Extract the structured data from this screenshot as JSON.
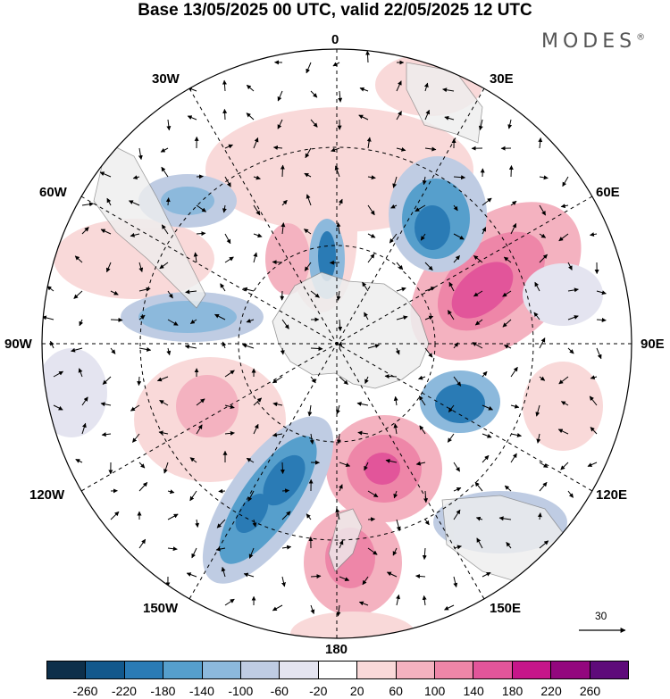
{
  "title": "Base 13/05/2025 00 UTC, valid 22/05/2025 12 UTC",
  "brand": "MODES",
  "brand_mark": "®",
  "longitude_labels": {
    "lon_0": "0",
    "lon_30e": "30E",
    "lon_60e": "60E",
    "lon_90e": "90E",
    "lon_120e": "120E",
    "lon_150e": "150E",
    "lon_180": "180",
    "lon_150w": "150W",
    "lon_120w": "120W",
    "lon_90w": "90W",
    "lon_60w": "60W",
    "lon_30w": "30W"
  },
  "vector_reference": "30",
  "colorbar": {
    "colors": [
      "#0d2f4a",
      "#12588c",
      "#2a7bb5",
      "#569fcc",
      "#8cb9dc",
      "#bfcce3",
      "#e4e4f0",
      "#ffffff",
      "#f9d9d9",
      "#f4b2c0",
      "#ee86a8",
      "#e2559a",
      "#c6168a",
      "#93077e",
      "#5e0b7a"
    ],
    "ticks": [
      "-260",
      "-220",
      "-180",
      "-140",
      "-100",
      "-60",
      "-20",
      "20",
      "60",
      "100",
      "140",
      "180",
      "220",
      "260"
    ]
  },
  "anomalies": [
    {
      "color": "#ee86a8"
    },
    {
      "color": "#e2559a"
    },
    {
      "color": "#f4b2c0"
    },
    {
      "color": "#569fcc"
    },
    {
      "color": "#2a7bb5"
    },
    {
      "color": "#12588c"
    },
    {
      "color": "#8cb9dc"
    },
    {
      "color": "#bfcce3"
    },
    {
      "color": "#f9d9d9"
    },
    {
      "color": "#e4e4f0"
    }
  ]
}
